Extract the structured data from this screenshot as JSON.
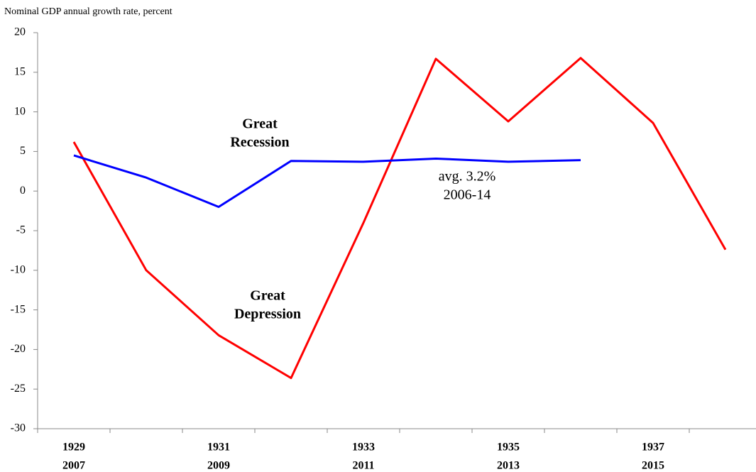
{
  "chart_data": {
    "type": "line",
    "title": "Nominal GDP annual growth rate, percent",
    "categories": [
      "1929",
      null,
      "1931",
      null,
      "1933",
      null,
      "1935",
      null,
      "1937",
      null
    ],
    "categories_secondary": [
      "2007",
      null,
      "2009",
      null,
      "2011",
      null,
      "2013",
      null,
      "2015",
      null
    ],
    "categories_color": "#ff0000",
    "categories_secondary_color": "#0000ff",
    "series": [
      {
        "name": "Great Depression",
        "color": "#ff0000",
        "values": [
          6.2,
          -10.0,
          -18.2,
          -23.6,
          -4.0,
          16.7,
          8.8,
          16.8,
          8.6,
          -7.4
        ]
      },
      {
        "name": "Great Recession",
        "color": "#0000ff",
        "values": [
          4.5,
          1.7,
          -2.0,
          3.8,
          3.7,
          4.1,
          3.7,
          3.9,
          null,
          null
        ]
      }
    ],
    "annotations": [
      {
        "lines": [
          "Great",
          "Recession"
        ],
        "color": "#0000ff",
        "bold": true
      },
      {
        "lines": [
          "Great",
          "Depression"
        ],
        "color": "#ff0000",
        "bold": true
      },
      {
        "lines": [
          "avg. 3.2%",
          "2006-14"
        ],
        "color": "#0000ff",
        "bold": false
      }
    ],
    "ylim": [
      -30,
      20
    ],
    "yticks": [
      -30,
      -25,
      -20,
      -15,
      -10,
      -5,
      0,
      5,
      10,
      15,
      20
    ],
    "grid": false
  }
}
